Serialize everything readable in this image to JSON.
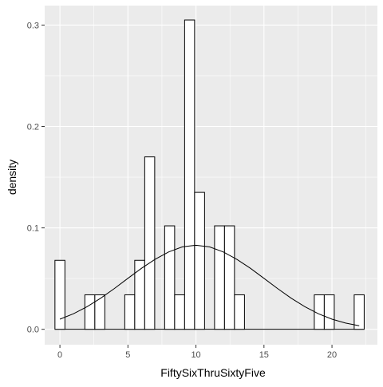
{
  "chart_data": {
    "type": "bar",
    "title": "",
    "xlabel": "FiftySixThruSixtyFive",
    "ylabel": "density",
    "xlim": [
      -1.12,
      23.34
    ],
    "ylim": [
      -0.0152,
      0.3192
    ],
    "x_ticks": [
      0,
      5,
      10,
      15,
      20
    ],
    "x_tick_labels": [
      "0",
      "5",
      "10",
      "15",
      "20"
    ],
    "y_ticks": [
      0.0,
      0.1,
      0.2,
      0.3
    ],
    "y_tick_labels": [
      "0.0",
      "0.1",
      "0.2",
      "0.3"
    ],
    "grid": true,
    "legend": "none",
    "colors": {
      "panel_background": "#ebebeb",
      "grid_major": "#ffffff",
      "bar_fill": "#ffffff",
      "bar_outline": "#000000",
      "density_line": "#000000",
      "tick_label": "#4d4d4d",
      "axis_title": "#000000"
    },
    "histogram": {
      "bin_width": 0.733,
      "bins": [
        {
          "x_min": -0.366,
          "x_max": 0.367,
          "density": 0.068
        },
        {
          "x_min": 1.833,
          "x_max": 2.567,
          "density": 0.034
        },
        {
          "x_min": 2.567,
          "x_max": 3.3,
          "density": 0.034
        },
        {
          "x_min": 4.767,
          "x_max": 5.5,
          "density": 0.034
        },
        {
          "x_min": 5.5,
          "x_max": 6.233,
          "density": 0.068
        },
        {
          "x_min": 6.233,
          "x_max": 6.967,
          "density": 0.17
        },
        {
          "x_min": 7.7,
          "x_max": 8.433,
          "density": 0.102
        },
        {
          "x_min": 8.433,
          "x_max": 9.167,
          "density": 0.034
        },
        {
          "x_min": 9.167,
          "x_max": 9.9,
          "density": 0.305
        },
        {
          "x_min": 9.9,
          "x_max": 10.633,
          "density": 0.135
        },
        {
          "x_min": 11.367,
          "x_max": 12.1,
          "density": 0.102
        },
        {
          "x_min": 12.1,
          "x_max": 12.833,
          "density": 0.102
        },
        {
          "x_min": 12.833,
          "x_max": 13.567,
          "density": 0.034
        },
        {
          "x_min": 18.7,
          "x_max": 19.433,
          "density": 0.034
        },
        {
          "x_min": 19.433,
          "x_max": 20.167,
          "density": 0.034
        },
        {
          "x_min": 21.633,
          "x_max": 22.367,
          "density": 0.034
        }
      ]
    },
    "density_curve": {
      "x": [
        0,
        1,
        2,
        3,
        4,
        5,
        6,
        7,
        8,
        9,
        9.6,
        10,
        11,
        12,
        13,
        14,
        15,
        16,
        17,
        18,
        19,
        20,
        21,
        22
      ],
      "y": [
        0.01,
        0.0153,
        0.0223,
        0.0307,
        0.0402,
        0.0503,
        0.0602,
        0.0691,
        0.0763,
        0.0813,
        0.0823,
        0.0828,
        0.0813,
        0.0763,
        0.0691,
        0.0602,
        0.0503,
        0.0402,
        0.0307,
        0.0223,
        0.0153,
        0.01,
        0.0061,
        0.0035
      ]
    }
  }
}
